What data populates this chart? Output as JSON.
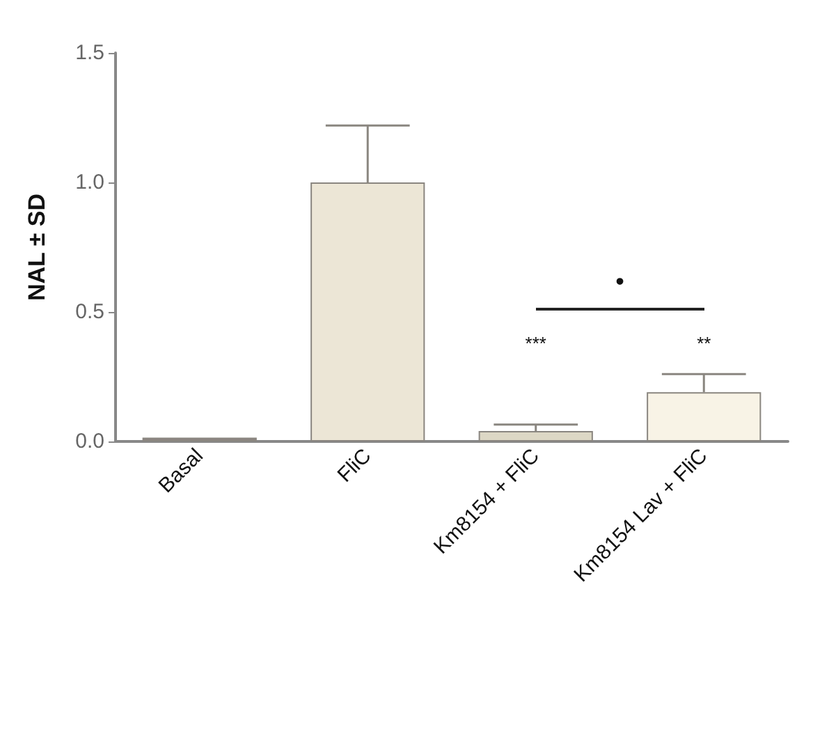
{
  "chart_data": {
    "type": "bar",
    "ylabel": "NAL ± SD",
    "categories": [
      "Basal",
      "FliC",
      "Km8154 + FliC",
      "Km8154 Lav + FliC"
    ],
    "values": [
      0.015,
      1.0,
      0.04,
      0.19
    ],
    "errors": [
      null,
      [
        1.0,
        1.22
      ],
      [
        0.04,
        0.065
      ],
      [
        0.19,
        0.26
      ]
    ],
    "colors": [
      "#8c8580",
      "#ece6d6",
      "#ddd8c5",
      "#f8f3e6"
    ],
    "ylim": [
      0,
      1.5
    ],
    "yticks": [
      {
        "value": 0,
        "label": "0.0"
      },
      {
        "value": 0.5,
        "label": "0.5"
      },
      {
        "value": 1,
        "label": "1.0"
      },
      {
        "value": 1.5,
        "label": "1.5"
      }
    ],
    "grid": false,
    "annotations": [
      "***",
      "**",
      "•"
    ]
  }
}
